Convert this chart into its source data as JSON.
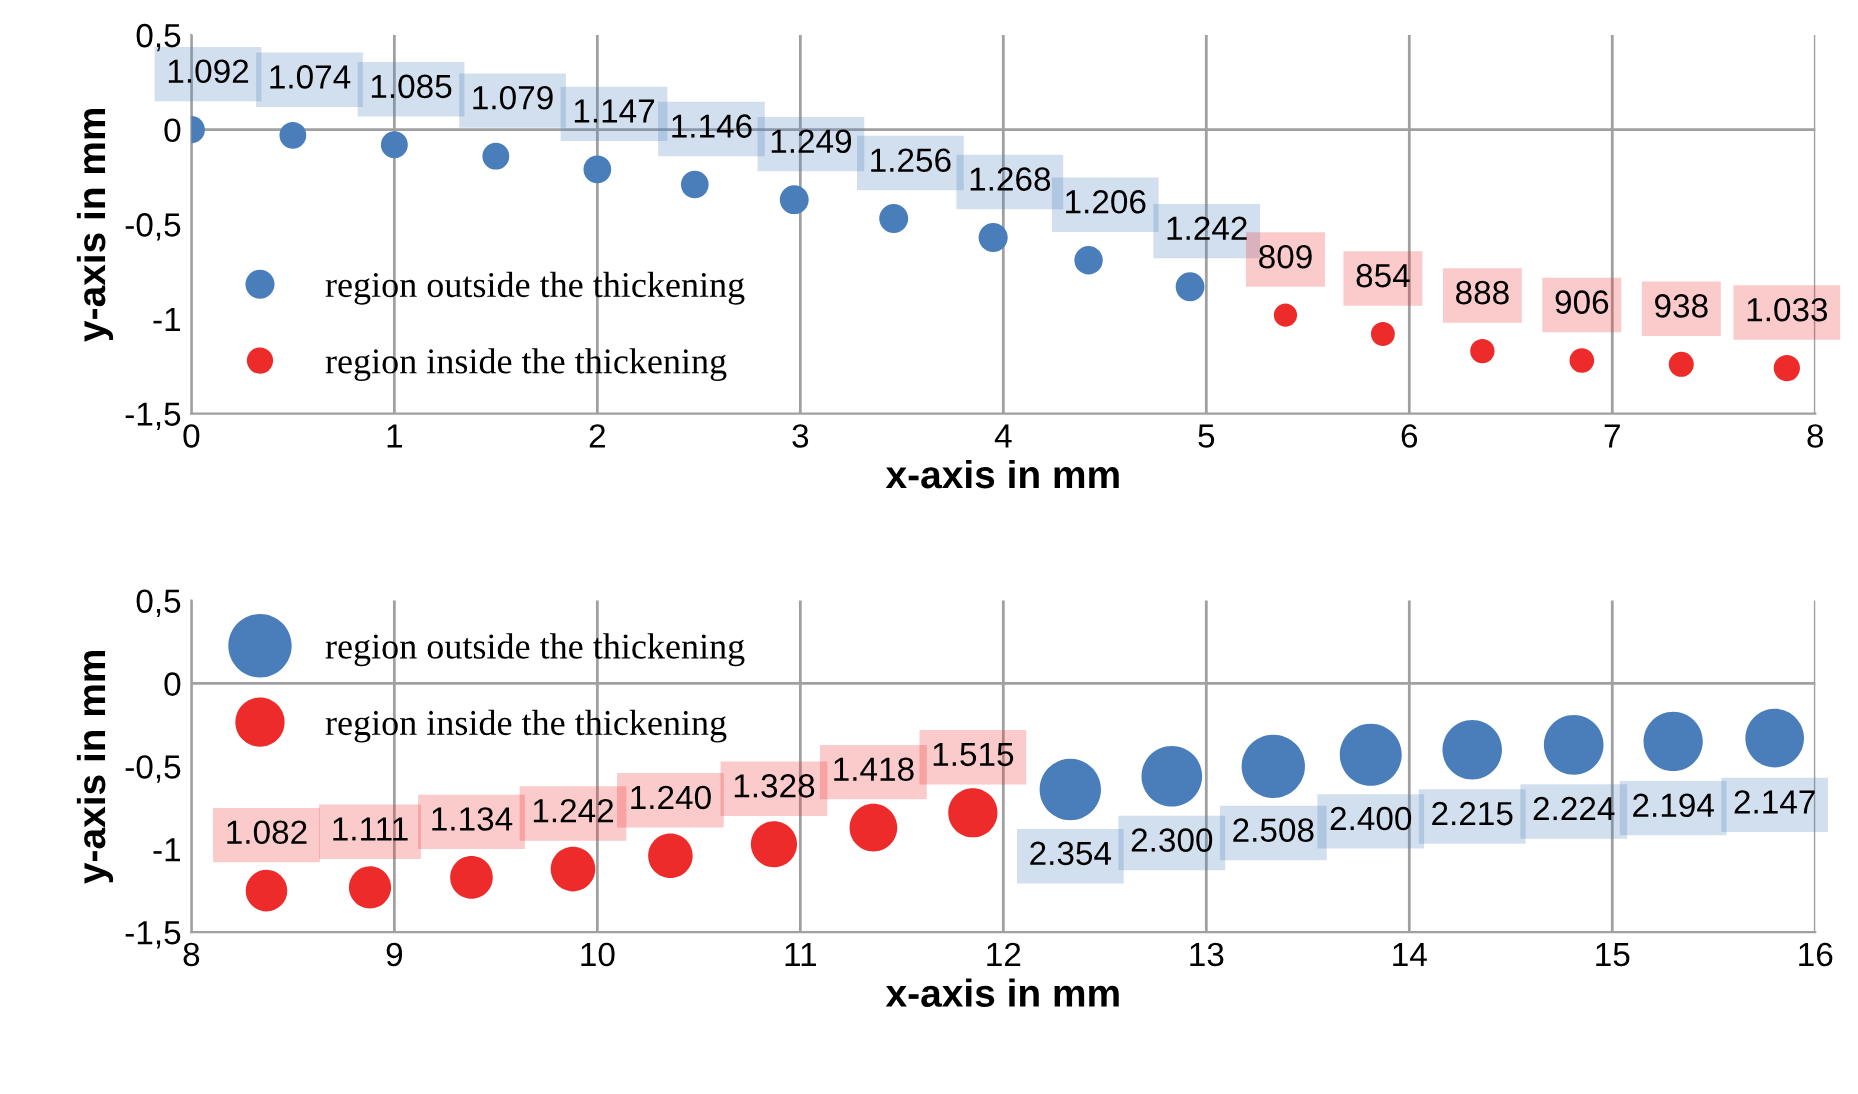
{
  "chart_data": [
    {
      "type": "bubble",
      "xlabel": "x-axis in mm",
      "ylabel": "y-axis in mm",
      "xlim": [
        0,
        8
      ],
      "xticks": [
        0,
        1,
        2,
        3,
        4,
        5,
        6,
        7,
        8
      ],
      "ylim": [
        -1.5,
        0.5
      ],
      "yticks": [
        {
          "value": -1.5,
          "label": "-1,5"
        },
        {
          "value": -1,
          "label": "-1"
        },
        {
          "value": -0.5,
          "label": "-0,5"
        },
        {
          "value": 0,
          "label": "0"
        },
        {
          "value": 0.5,
          "label": "0,5"
        }
      ],
      "grid": "x",
      "legend": "bottom left",
      "ref_lines": [
        {
          "axis": "y",
          "value": 0,
          "color": "#a0a0a0"
        }
      ],
      "series": [
        {
          "name": "region outside the thickening",
          "color": "#4a7ebb",
          "x": [
            0,
            0.5,
            1.0,
            1.5,
            2.0,
            2.48,
            2.97,
            3.46,
            3.95,
            4.42,
            4.92
          ],
          "values": [
            0,
            -0.03,
            -0.08,
            -0.14,
            -0.21,
            -0.29,
            -0.37,
            -0.47,
            -0.57,
            -0.69,
            -0.83
          ],
          "sizes": [
            1092,
            1074,
            1085,
            1079,
            1147,
            1146,
            1249,
            1256,
            1268,
            1206,
            1242
          ],
          "value_labels": [
            "1.092",
            "1.074",
            "1.085",
            "1.079",
            "1.147",
            "1.146",
            "1.249",
            "1.256",
            "1.268",
            "1.206",
            "1.242"
          ]
        },
        {
          "name": "region inside the thickening",
          "color": "#ee2b2b",
          "x": [
            5.39,
            5.87,
            6.36,
            6.85,
            7.34,
            7.86
          ],
          "values": [
            -0.98,
            -1.08,
            -1.17,
            -1.22,
            -1.24,
            -1.26
          ],
          "sizes": [
            809,
            854,
            888,
            906,
            938,
            1033
          ],
          "value_labels": [
            "809",
            "854",
            "888",
            "906",
            "938",
            "1.033"
          ]
        }
      ]
    },
    {
      "type": "bubble",
      "xlabel": "x-axis in mm",
      "ylabel": "y-axis in mm",
      "xlim": [
        8,
        16
      ],
      "xticks": [
        8,
        9,
        10,
        11,
        12,
        13,
        14,
        15,
        16
      ],
      "ylim": [
        -1.5,
        0.5
      ],
      "yticks": [
        {
          "value": -1.5,
          "label": "-1,5"
        },
        {
          "value": -1,
          "label": "-1"
        },
        {
          "value": -0.5,
          "label": "-0,5"
        },
        {
          "value": 0,
          "label": "0"
        },
        {
          "value": 0.5,
          "label": "0,5"
        }
      ],
      "grid": "x",
      "legend": "top left",
      "ref_lines": [
        {
          "axis": "y",
          "value": 0,
          "color": "#a0a0a0"
        }
      ],
      "series": [
        {
          "name": "region outside the thickening",
          "color": "#4a7ebb",
          "x": [
            12.33,
            12.83,
            13.33,
            13.81,
            14.31,
            14.81,
            15.3,
            15.8
          ],
          "values": [
            -0.64,
            -0.56,
            -0.5,
            -0.43,
            -0.4,
            -0.37,
            -0.35,
            -0.33
          ],
          "sizes": [
            2354,
            2300,
            2508,
            2400,
            2215,
            2224,
            2194,
            2147
          ],
          "value_labels": [
            "2.354",
            "2.300",
            "2.508",
            "2.400",
            "2.215",
            "2.224",
            "2.194",
            "2.147"
          ]
        },
        {
          "name": "region inside the thickening",
          "color": "#ee2b2b",
          "x": [
            8.37,
            8.88,
            9.38,
            9.88,
            10.36,
            10.87,
            11.36,
            11.85
          ],
          "values": [
            -1.25,
            -1.23,
            -1.17,
            -1.12,
            -1.04,
            -0.97,
            -0.87,
            -0.78
          ],
          "sizes": [
            1082,
            1111,
            1134,
            1242,
            1240,
            1328,
            1418,
            1515
          ],
          "value_labels": [
            "1.082",
            "1.111",
            "1.134",
            "1.242",
            "1.240",
            "1.328",
            "1.418",
            "1.515"
          ]
        }
      ]
    }
  ]
}
